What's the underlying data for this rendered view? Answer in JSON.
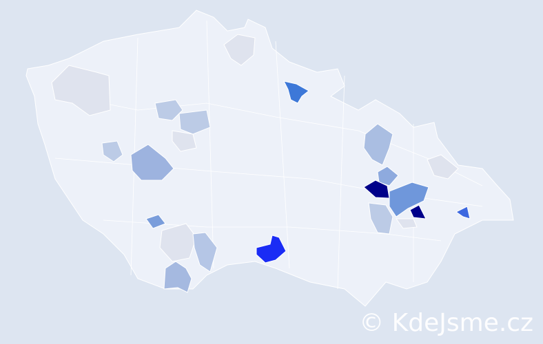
{
  "watermark": "© KdeJsme.cz",
  "colors": {
    "background": "#dde5f1",
    "base": "#edf1f9",
    "light_gray": "#dfe3ee",
    "light_blue": "#bccbe6",
    "mid_blue": "#9db3df",
    "blue": "#6f97db",
    "strong_blue": "#3d78d8",
    "bright_blue": "#1a2cf5",
    "dark_navy": "#00008a"
  }
}
